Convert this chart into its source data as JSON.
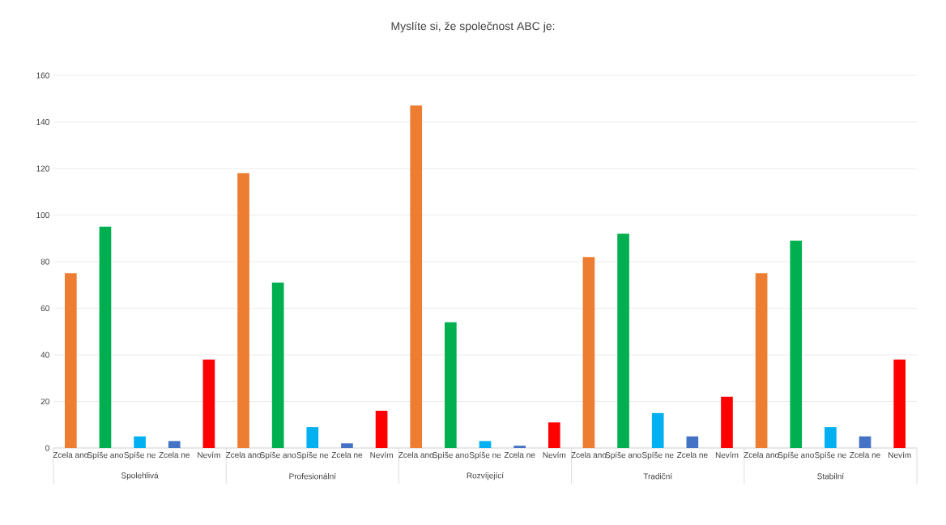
{
  "chart_data": {
    "type": "bar",
    "title": "Myslíte si, že společnost ABC je:",
    "categories": [
      "Zcela ano",
      "Spíše ano",
      "Spíše ne",
      "Zcela ne",
      "Nevím",
      "Zcela ano",
      "Spíše ano",
      "Spíše ne",
      "Zcela ne",
      "Nevím",
      "Zcela ano",
      "Spíše ano",
      "Spíše ne",
      "Zcela ne",
      "Nevím",
      "Zcela ano",
      "Spíše ano",
      "Spíše ne",
      "Zcela ne",
      "Nevím",
      "Zcela ano",
      "Spíše ano",
      "Spíše ne",
      "Zcela ne",
      "Nevím"
    ],
    "values": [
      75,
      95,
      5,
      3,
      38,
      118,
      71,
      9,
      2,
      16,
      147,
      54,
      3,
      1,
      11,
      82,
      92,
      15,
      5,
      22,
      75,
      89,
      9,
      5,
      38
    ],
    "colors": [
      "#ed7d31",
      "#00b050",
      "#00b0f0",
      "#4472c4",
      "#ff0000",
      "#ed7d31",
      "#00b050",
      "#00b0f0",
      "#4472c4",
      "#ff0000",
      "#ed7d31",
      "#00b050",
      "#00b0f0",
      "#4472c4",
      "#ff0000",
      "#ed7d31",
      "#00b050",
      "#00b0f0",
      "#4472c4",
      "#ff0000",
      "#ed7d31",
      "#00b050",
      "#00b0f0",
      "#4472c4",
      "#ff0000"
    ],
    "annotations": [
      "Spolehlivá",
      "Profesionální",
      "Rozvíjející",
      "Tradiční",
      "Stabilní"
    ],
    "ylim": [
      0,
      160
    ],
    "yticks": [
      0,
      20,
      40,
      60,
      80,
      100,
      120,
      140,
      160
    ],
    "grid": "y"
  }
}
